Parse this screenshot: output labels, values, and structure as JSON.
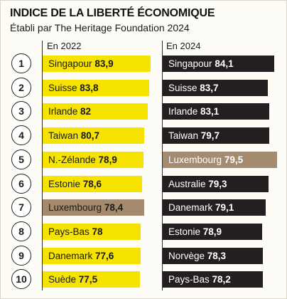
{
  "header": {
    "title": "INDICE DE LA LIBERTÉ ÉCONOMIQUE",
    "subtitle": "Établi par The Heritage Foundation 2024"
  },
  "colors": {
    "yellow": "#f6e300",
    "dark": "#231f20",
    "highlight": "#a48a6e",
    "text_on_dark": "#ffffff"
  },
  "chart_data": {
    "type": "bar",
    "ranks": [
      "1",
      "2",
      "3",
      "4",
      "5",
      "6",
      "7",
      "8",
      "9",
      "10"
    ],
    "series": [
      {
        "name": "En 2022",
        "color": "yellow",
        "highlight_index": 6,
        "items": [
          {
            "country": "Singapour",
            "value": "83,9"
          },
          {
            "country": "Suisse",
            "value": "83,8"
          },
          {
            "country": "Irlande",
            "value": "82"
          },
          {
            "country": "Taiwan",
            "value": "80,7"
          },
          {
            "country": "N.-Zélande",
            "value": "78,9"
          },
          {
            "country": "Estonie",
            "value": "78,6"
          },
          {
            "country": "Luxembourg",
            "value": "78,4"
          },
          {
            "country": "Pays-Bas",
            "value": "78"
          },
          {
            "country": "Danemark",
            "value": "77,6"
          },
          {
            "country": "Suède",
            "value": "77,5"
          }
        ]
      },
      {
        "name": "En 2024",
        "color": "dark",
        "highlight_index": 4,
        "items": [
          {
            "country": "Singapour",
            "value": "84,1"
          },
          {
            "country": "Suisse",
            "value": "83,7"
          },
          {
            "country": "Irlande",
            "value": "83,1"
          },
          {
            "country": "Taiwan",
            "value": "79,7"
          },
          {
            "country": "Luxembourg",
            "value": "79,5"
          },
          {
            "country": "Australie",
            "value": "79,3"
          },
          {
            "country": "Danemark",
            "value": "79,1"
          },
          {
            "country": "Estonie",
            "value": "78,9"
          },
          {
            "country": "Norvège",
            "value": "78,3"
          },
          {
            "country": "Pays-Bas",
            "value": "78,2"
          }
        ]
      }
    ]
  }
}
